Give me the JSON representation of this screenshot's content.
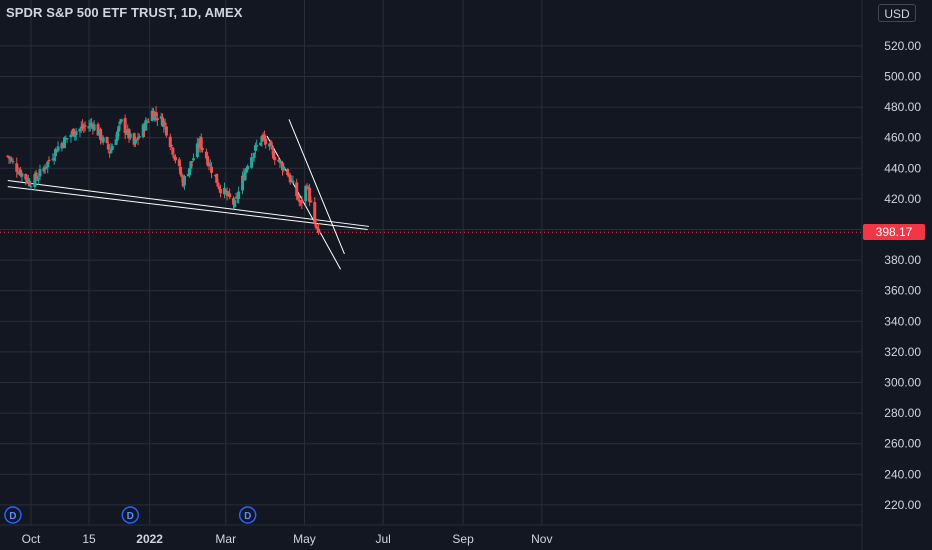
{
  "header": {
    "title": "SPDR S&P 500 ETF TRUST, 1D, AMEX",
    "currency_label": "USD"
  },
  "current_price_label": "398.17",
  "colors": {
    "background": "#131722",
    "grid": "#2a2e39",
    "up": "#26a69a",
    "down": "#ef5350",
    "text": "#d1d4dc",
    "price_tag": "#f23645",
    "trendline": "#ffffff",
    "dividend": "#2962ff"
  },
  "dividend_marker_glyph": "D",
  "chart_data": {
    "type": "candlestick",
    "title": "SPDR S&P 500 ETF TRUST, 1D, AMEX",
    "x_tick_labels": [
      "Oct",
      "15",
      "2022",
      "Mar",
      "May",
      "Jul",
      "Sep",
      "Nov"
    ],
    "y_tick_labels": [
      "220.00",
      "240.00",
      "260.00",
      "280.00",
      "300.00",
      "320.00",
      "340.00",
      "360.00",
      "380.00",
      "400.00",
      "420.00",
      "440.00",
      "460.00",
      "480.00",
      "500.00",
      "520.00"
    ],
    "ylim": [
      209,
      535
    ],
    "last_price": 398.17,
    "close_path_key_points": [
      {
        "date": "2021-09-13",
        "close": 448
      },
      {
        "date": "2021-09-20",
        "close": 440
      },
      {
        "date": "2021-09-30",
        "close": 431
      },
      {
        "date": "2021-10-06",
        "close": 434
      },
      {
        "date": "2021-10-15",
        "close": 445
      },
      {
        "date": "2021-10-22",
        "close": 454
      },
      {
        "date": "2021-11-03",
        "close": 464
      },
      {
        "date": "2021-11-18",
        "close": 469
      },
      {
        "date": "2021-12-01",
        "close": 451
      },
      {
        "date": "2021-12-10",
        "close": 470
      },
      {
        "date": "2021-12-20",
        "close": 455
      },
      {
        "date": "2022-01-03",
        "close": 477
      },
      {
        "date": "2022-01-12",
        "close": 470
      },
      {
        "date": "2022-01-27",
        "close": 431
      },
      {
        "date": "2022-02-09",
        "close": 457
      },
      {
        "date": "2022-02-24",
        "close": 428
      },
      {
        "date": "2022-03-08",
        "close": 416
      },
      {
        "date": "2022-03-18",
        "close": 444
      },
      {
        "date": "2022-03-29",
        "close": 460
      },
      {
        "date": "2022-04-08",
        "close": 448
      },
      {
        "date": "2022-04-18",
        "close": 437
      },
      {
        "date": "2022-04-28",
        "close": 416
      },
      {
        "date": "2022-05-03",
        "close": 430
      },
      {
        "date": "2022-05-09",
        "close": 402
      },
      {
        "date": "2022-05-12",
        "close": 398.17
      }
    ],
    "trendlines": [
      {
        "start": {
          "date": "2021-09-13",
          "price": 432
        },
        "end": {
          "date": "2022-06-20",
          "price": 402
        }
      },
      {
        "start": {
          "date": "2021-09-13",
          "price": 428
        },
        "end": {
          "date": "2022-06-19",
          "price": 400
        }
      },
      {
        "start": {
          "date": "2022-04-02",
          "price": 461
        },
        "end": {
          "date": "2022-05-29",
          "price": 374
        }
      },
      {
        "start": {
          "date": "2022-04-19",
          "price": 472
        },
        "end": {
          "date": "2022-06-01",
          "price": 384
        }
      }
    ],
    "dividend_markers": [
      "2021-09-17",
      "2021-12-17",
      "2022-03-18"
    ]
  }
}
